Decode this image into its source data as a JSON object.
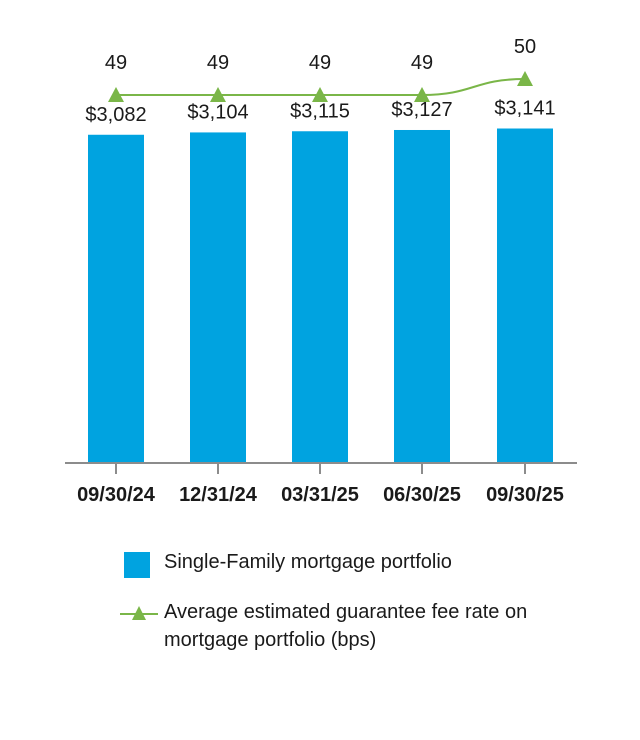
{
  "chart_data": {
    "type": "bar",
    "categories": [
      "09/30/24",
      "12/31/24",
      "03/31/25",
      "06/30/25",
      "09/30/25"
    ],
    "series": [
      {
        "name": "Single-Family mortgage portfolio",
        "type": "bar",
        "values": [
          3082,
          3104,
          3115,
          3127,
          3141
        ],
        "labels": [
          "$3,082",
          "$3,104",
          "$3,115",
          "$3,127",
          "$3,141"
        ],
        "color": "#00a3e0"
      },
      {
        "name": "Average estimated guarantee fee rate on mortgage portfolio (bps)",
        "type": "line",
        "values": [
          49,
          49,
          49,
          49,
          50
        ],
        "labels": [
          "49",
          "49",
          "49",
          "49",
          "50"
        ],
        "color": "#7ab648",
        "marker": "triangle"
      }
    ],
    "ylim": [
      0,
      3400
    ],
    "legend": {
      "placement": "bottom",
      "items": [
        "Single-Family mortgage portfolio",
        "Average estimated guarantee fee rate on mortgage portfolio (bps)"
      ],
      "line2_text_1": "Average estimated guarantee fee rate on",
      "line2_text_2": "mortgage portfolio (bps)"
    },
    "grid": false
  }
}
